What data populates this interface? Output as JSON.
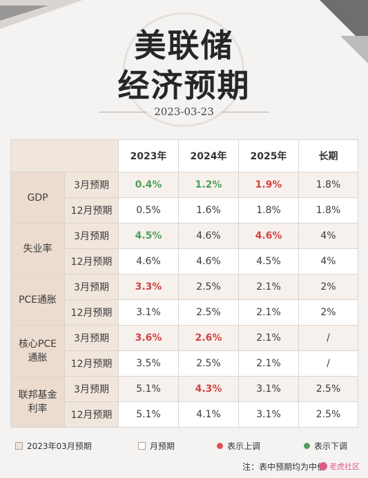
{
  "title": {
    "line1": "美联储",
    "line2": "经济预期"
  },
  "date": "2023-03-23",
  "table": {
    "headers": [
      "2023年",
      "2024年",
      "2025年",
      "长期"
    ],
    "rows": [
      {
        "metric": "GDP",
        "metric_lines": [
          "GDP"
        ],
        "mar": {
          "label": "3月预期",
          "values": [
            "0.4%",
            "1.2%",
            "1.9%",
            "1.8%"
          ],
          "dir": [
            "down",
            "down",
            "up",
            ""
          ]
        },
        "dec": {
          "label": "12月预期",
          "values": [
            "0.5%",
            "1.6%",
            "1.8%",
            "1.8%"
          ]
        }
      },
      {
        "metric": "失业率",
        "metric_lines": [
          "失业率"
        ],
        "mar": {
          "label": "3月预期",
          "values": [
            "4.5%",
            "4.6%",
            "4.6%",
            "4%"
          ],
          "dir": [
            "down",
            "",
            "up",
            ""
          ]
        },
        "dec": {
          "label": "12月预期",
          "values": [
            "4.6%",
            "4.6%",
            "4.5%",
            "4%"
          ]
        }
      },
      {
        "metric": "PCE通胀",
        "metric_lines": [
          "PCE通胀"
        ],
        "mar": {
          "label": "3月预期",
          "values": [
            "3.3%",
            "2.5%",
            "2.1%",
            "2%"
          ],
          "dir": [
            "up",
            "",
            "",
            ""
          ]
        },
        "dec": {
          "label": "12月预期",
          "values": [
            "3.1%",
            "2.5%",
            "2.1%",
            "2%"
          ]
        }
      },
      {
        "metric": "核心PCE通胀",
        "metric_lines": [
          "核心PCE",
          "通胀"
        ],
        "mar": {
          "label": "3月预期",
          "values": [
            "3.6%",
            "2.6%",
            "2.1%",
            "/"
          ],
          "dir": [
            "up",
            "up",
            "",
            ""
          ]
        },
        "dec": {
          "label": "12月预期",
          "values": [
            "3.5%",
            "2.5%",
            "2.1%",
            "/"
          ]
        }
      },
      {
        "metric": "联邦基金利率",
        "metric_lines": [
          "联邦基金",
          "利率"
        ],
        "mar": {
          "label": "3月预期",
          "values": [
            "5.1%",
            "4.3%",
            "3.1%",
            "2.5%"
          ],
          "dir": [
            "",
            "up",
            "",
            ""
          ]
        },
        "dec": {
          "label": "12月预期",
          "values": [
            "5.1%",
            "4.1%",
            "3.1%",
            "2.5%"
          ]
        }
      }
    ]
  },
  "legend": {
    "shaded_label": "2023年03月预期",
    "white_label": "月预期",
    "up_label": "表示上调",
    "down_label": "表示下调",
    "colors": {
      "up": "#de4f4f",
      "down": "#4fa057"
    }
  },
  "note": "注：表中预期均为中值",
  "watermark_badge": "老虎社区"
}
